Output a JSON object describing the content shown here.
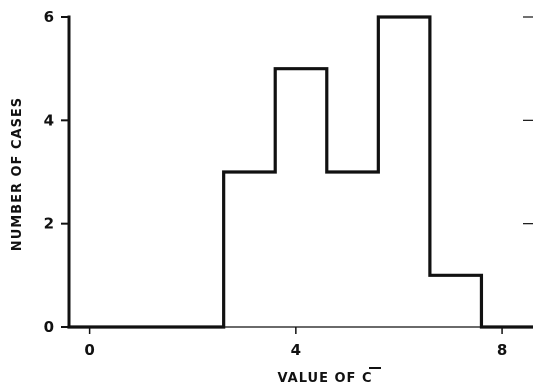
{
  "chart_data": {
    "type": "histogram",
    "title": "",
    "xlabel": "VALUE OF C",
    "xlabel_overbar": "C",
    "ylabel": "NUMBER OF CASES",
    "xlim": [
      -0.4,
      8.6
    ],
    "ylim": [
      0,
      6
    ],
    "x_ticks": [
      0,
      4,
      8
    ],
    "x_tick_labels": [
      "0",
      "4",
      "8"
    ],
    "y_ticks": [
      0,
      2,
      4,
      6
    ],
    "y_tick_labels": [
      "0",
      "2",
      "4",
      "6"
    ],
    "bins": [
      {
        "start": -0.4,
        "end": 2.6,
        "count": 0
      },
      {
        "start": 2.6,
        "end": 3.6,
        "count": 3
      },
      {
        "start": 3.6,
        "end": 4.6,
        "count": 5
      },
      {
        "start": 4.6,
        "end": 5.6,
        "count": 3
      },
      {
        "start": 5.6,
        "end": 6.6,
        "count": 6
      },
      {
        "start": 6.6,
        "end": 7.6,
        "count": 1
      },
      {
        "start": 7.6,
        "end": 8.6,
        "count": 0
      }
    ],
    "grid": false,
    "legend": "none"
  }
}
